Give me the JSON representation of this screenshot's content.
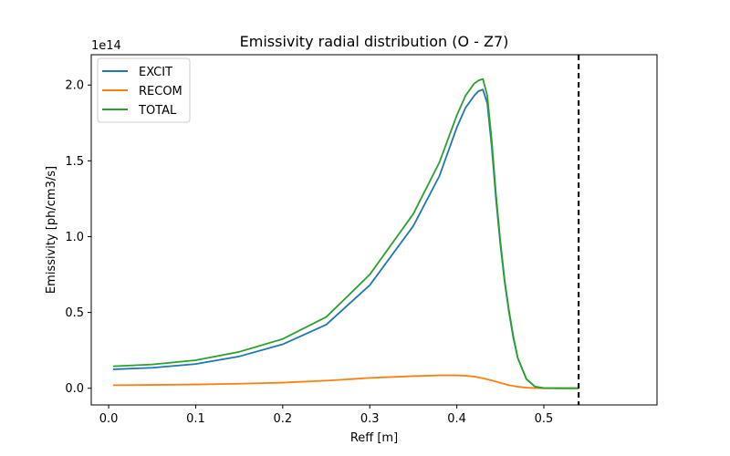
{
  "chart_data": {
    "type": "line",
    "title": "Emissivity radial distribution (O - Z7)",
    "xlabel": "Reff [m]",
    "ylabel": "Emissivity [ph/cm3/s]",
    "y_offset_label": "1e14",
    "xlim": [
      -0.02,
      0.63
    ],
    "ylim": [
      -0.11,
      2.2
    ],
    "x_ticks": [
      0.0,
      0.1,
      0.2,
      0.3,
      0.4,
      0.5
    ],
    "x_tick_labels": [
      "0.0",
      "0.1",
      "0.2",
      "0.3",
      "0.4",
      "0.5"
    ],
    "y_ticks": [
      0.0,
      0.5,
      1.0,
      1.5,
      2.0
    ],
    "y_tick_labels": [
      "0.0",
      "0.5",
      "1.0",
      "1.5",
      "2.0"
    ],
    "grid": false,
    "legend_position": "top-left",
    "vertical_line": {
      "x": 0.54,
      "style": "dashed",
      "color": "#000000"
    },
    "series": [
      {
        "name": "EXCIT",
        "color": "#1f77b4",
        "x": [
          0.005,
          0.05,
          0.1,
          0.15,
          0.2,
          0.25,
          0.3,
          0.35,
          0.38,
          0.4,
          0.41,
          0.42,
          0.425,
          0.43,
          0.435,
          0.44,
          0.445,
          0.45,
          0.455,
          0.46,
          0.465,
          0.47,
          0.48,
          0.49,
          0.5,
          0.52,
          0.54
        ],
        "y": [
          0.125,
          0.135,
          0.16,
          0.21,
          0.29,
          0.42,
          0.68,
          1.07,
          1.4,
          1.72,
          1.85,
          1.93,
          1.96,
          1.97,
          1.88,
          1.6,
          1.25,
          0.95,
          0.7,
          0.5,
          0.33,
          0.2,
          0.06,
          0.01,
          0.001,
          0.0,
          0.0
        ]
      },
      {
        "name": "RECOM",
        "color": "#ff7f0e",
        "x": [
          0.005,
          0.05,
          0.1,
          0.15,
          0.2,
          0.25,
          0.3,
          0.35,
          0.38,
          0.4,
          0.41,
          0.42,
          0.43,
          0.44,
          0.45,
          0.46,
          0.47,
          0.48,
          0.49,
          0.5,
          0.52,
          0.54
        ],
        "y": [
          0.02,
          0.022,
          0.025,
          0.03,
          0.037,
          0.05,
          0.068,
          0.08,
          0.085,
          0.085,
          0.082,
          0.077,
          0.066,
          0.052,
          0.036,
          0.02,
          0.01,
          0.004,
          0.001,
          0.0,
          0.0,
          0.0
        ]
      },
      {
        "name": "TOTAL",
        "color": "#2ca02c",
        "x": [
          0.005,
          0.05,
          0.1,
          0.15,
          0.2,
          0.25,
          0.3,
          0.35,
          0.38,
          0.4,
          0.41,
          0.42,
          0.425,
          0.43,
          0.435,
          0.44,
          0.445,
          0.45,
          0.455,
          0.46,
          0.465,
          0.47,
          0.48,
          0.49,
          0.5,
          0.52,
          0.54
        ],
        "y": [
          0.145,
          0.157,
          0.185,
          0.24,
          0.325,
          0.47,
          0.75,
          1.15,
          1.49,
          1.8,
          1.93,
          2.01,
          2.03,
          2.04,
          1.93,
          1.64,
          1.28,
          0.97,
          0.71,
          0.51,
          0.34,
          0.2,
          0.06,
          0.01,
          0.001,
          0.0,
          0.0
        ]
      }
    ]
  }
}
